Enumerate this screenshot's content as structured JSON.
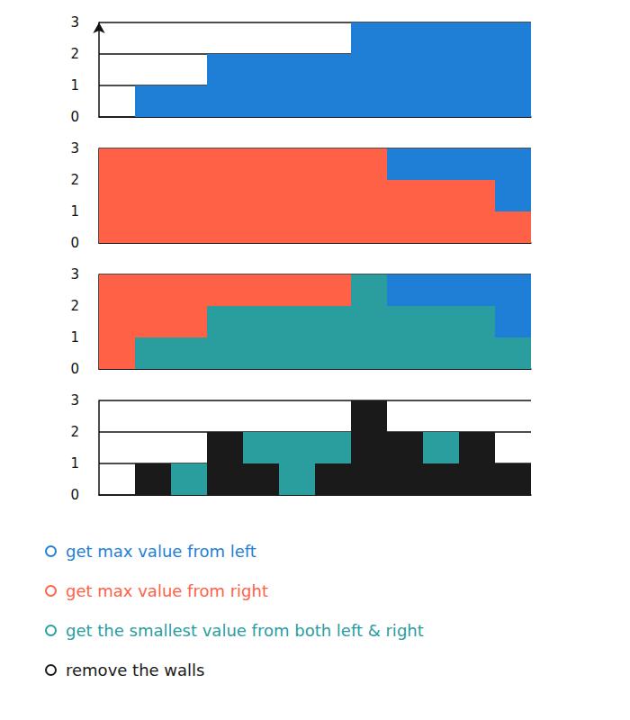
{
  "chart_data": [
    {
      "type": "bar",
      "categories": [
        null,
        null,
        null,
        null,
        null,
        null,
        null,
        null,
        null,
        null,
        null,
        null
      ],
      "series": [
        {
          "name": "get max value from left",
          "color": "#1f7fd6",
          "values": [
            0,
            1,
            1,
            2,
            2,
            2,
            2,
            3,
            3,
            3,
            3,
            3
          ]
        }
      ],
      "ylim": [
        0,
        3
      ],
      "yticks": [
        0,
        1,
        2,
        3
      ],
      "grid": true,
      "tick_labels": "y"
    },
    {
      "type": "bar",
      "categories": [
        null,
        null,
        null,
        null,
        null,
        null,
        null,
        null,
        null,
        null,
        null,
        null
      ],
      "series": [
        {
          "name": "get max value from left",
          "color": "#1f7fd6",
          "values": [
            0,
            1,
            1,
            2,
            2,
            2,
            2,
            3,
            3,
            3,
            3,
            3
          ]
        },
        {
          "name": "get max value from right",
          "color": "#ff6147",
          "values": [
            3,
            3,
            3,
            3,
            3,
            3,
            3,
            3,
            2,
            2,
            2,
            1
          ]
        }
      ],
      "ylim": [
        0,
        3
      ],
      "yticks": [
        0,
        1,
        2,
        3
      ],
      "grid": true,
      "tick_labels": "y"
    },
    {
      "type": "bar",
      "categories": [
        null,
        null,
        null,
        null,
        null,
        null,
        null,
        null,
        null,
        null,
        null,
        null
      ],
      "series": [
        {
          "name": "get max value from left",
          "color": "#1f7fd6",
          "values": [
            0,
            1,
            1,
            2,
            2,
            2,
            2,
            3,
            3,
            3,
            3,
            3
          ]
        },
        {
          "name": "get max value from right",
          "color": "#ff6147",
          "values": [
            3,
            3,
            3,
            3,
            3,
            3,
            3,
            3,
            2,
            2,
            2,
            1
          ]
        },
        {
          "name": "get the smallest value from both left & right",
          "color": "#2a9d9f",
          "values": [
            0,
            1,
            1,
            2,
            2,
            2,
            2,
            3,
            2,
            2,
            2,
            1
          ]
        }
      ],
      "ylim": [
        0,
        3
      ],
      "yticks": [
        0,
        1,
        2,
        3
      ],
      "grid": true,
      "tick_labels": "y"
    },
    {
      "type": "bar",
      "categories": [
        null,
        null,
        null,
        null,
        null,
        null,
        null,
        null,
        null,
        null,
        null,
        null
      ],
      "series": [
        {
          "name": "get the smallest value from both left & right",
          "color": "#2a9d9f",
          "values": [
            0,
            1,
            1,
            2,
            2,
            2,
            2,
            3,
            2,
            2,
            2,
            1
          ]
        },
        {
          "name": "remove the walls",
          "color": "#1a1a1a",
          "values": [
            0,
            1,
            0,
            2,
            1,
            0,
            1,
            3,
            2,
            1,
            2,
            1
          ]
        }
      ],
      "ylim": [
        0,
        3
      ],
      "yticks": [
        0,
        1,
        2,
        3
      ],
      "grid": true,
      "tick_labels": "y"
    }
  ]
}
